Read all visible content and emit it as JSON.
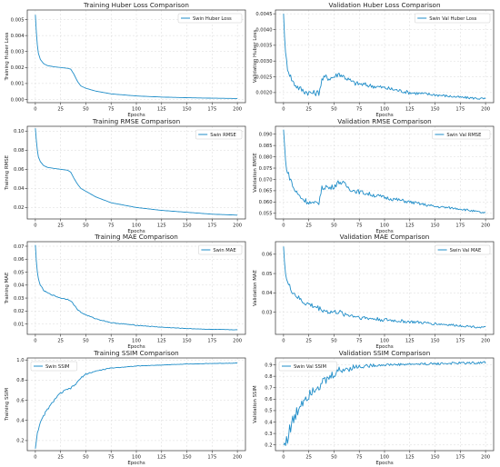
{
  "colors": {
    "series": "#1f8dc8",
    "grid": "#d9d9d9",
    "axis": "#333333"
  },
  "chart_data": [
    {
      "type": "line",
      "title": "Training Huber Loss Comparison",
      "xlabel": "Epochs",
      "ylabel": "Training Huber Loss",
      "xlim": [
        -8,
        208
      ],
      "ylim": [
        -0.0002,
        0.0056
      ],
      "xticks": [
        0,
        25,
        50,
        75,
        100,
        125,
        150,
        175,
        200
      ],
      "yticks": [
        0.0,
        0.001,
        0.002,
        0.003,
        0.004,
        0.005
      ],
      "ytick_labels": [
        "0.000",
        "0.001",
        "0.002",
        "0.003",
        "0.004",
        "0.005"
      ],
      "legend": "top-right",
      "grid": true,
      "noise": 0,
      "series": [
        {
          "name": "Swin Huber Loss",
          "x": [
            0,
            1,
            2,
            3,
            5,
            8,
            12,
            18,
            25,
            32,
            35,
            38,
            42,
            45,
            50,
            60,
            75,
            100,
            125,
            150,
            175,
            200
          ],
          "y": [
            0.0053,
            0.0042,
            0.0034,
            0.0029,
            0.0025,
            0.00225,
            0.00212,
            0.00205,
            0.002,
            0.00195,
            0.0019,
            0.0016,
            0.0011,
            0.00085,
            0.0007,
            0.00052,
            0.00035,
            0.00022,
            0.00015,
            0.00011,
            8e-05,
            6e-05
          ]
        }
      ]
    },
    {
      "type": "line",
      "title": "Validation Huber Loss Comparison",
      "xlabel": "Epochs",
      "ylabel": "Validation Huber Loss",
      "xlim": [
        -8,
        208
      ],
      "ylim": [
        0.00168,
        0.00462
      ],
      "xticks": [
        0,
        25,
        50,
        75,
        100,
        125,
        150,
        175,
        200
      ],
      "yticks": [
        0.002,
        0.0025,
        0.003,
        0.0035,
        0.004,
        0.0045
      ],
      "ytick_labels": [
        "0.0020",
        "0.0025",
        "0.0030",
        "0.0035",
        "0.0040",
        "0.0045"
      ],
      "legend": "top-right",
      "grid": true,
      "noise": 0.00011,
      "series": [
        {
          "name": "Swin Val Huber Loss",
          "x": [
            0,
            2,
            4,
            7,
            10,
            15,
            20,
            25,
            30,
            35,
            38,
            42,
            45,
            50,
            55,
            60,
            65,
            70,
            80,
            90,
            100,
            125,
            150,
            175,
            200
          ],
          "y": [
            0.0045,
            0.0032,
            0.0028,
            0.0025,
            0.0023,
            0.00215,
            0.00205,
            0.002,
            0.00198,
            0.002,
            0.0024,
            0.0025,
            0.00245,
            0.0025,
            0.0026,
            0.0025,
            0.0024,
            0.0023,
            0.00225,
            0.0022,
            0.00215,
            0.002,
            0.00193,
            0.00185,
            0.0018
          ]
        }
      ]
    },
    {
      "type": "line",
      "title": "Training RMSE Comparison",
      "xlabel": "Epochs",
      "ylabel": "Training RMSE",
      "xlim": [
        -8,
        208
      ],
      "ylim": [
        0.008,
        0.105
      ],
      "xticks": [
        0,
        25,
        50,
        75,
        100,
        125,
        150,
        175,
        200
      ],
      "yticks": [
        0.02,
        0.04,
        0.06,
        0.08,
        0.1
      ],
      "ytick_labels": [
        "0.02",
        "0.04",
        "0.06",
        "0.08",
        "0.10"
      ],
      "legend": "top-right",
      "grid": true,
      "noise": 0,
      "series": [
        {
          "name": "Swin RMSE",
          "x": [
            0,
            1,
            2,
            3,
            5,
            8,
            12,
            18,
            25,
            32,
            35,
            38,
            42,
            45,
            50,
            60,
            75,
            100,
            125,
            150,
            175,
            200
          ],
          "y": [
            0.103,
            0.09,
            0.08,
            0.073,
            0.068,
            0.064,
            0.062,
            0.061,
            0.06,
            0.059,
            0.057,
            0.051,
            0.044,
            0.04,
            0.037,
            0.031,
            0.025,
            0.02,
            0.017,
            0.015,
            0.013,
            0.012
          ]
        }
      ]
    },
    {
      "type": "line",
      "title": "Validation RMSE Comparison",
      "xlabel": "Epochs",
      "ylabel": "Validation RMSE",
      "xlim": [
        -8,
        208
      ],
      "ylim": [
        0.0525,
        0.0935
      ],
      "xticks": [
        0,
        25,
        50,
        75,
        100,
        125,
        150,
        175,
        200
      ],
      "yticks": [
        0.055,
        0.06,
        0.065,
        0.07,
        0.075,
        0.08,
        0.085,
        0.09
      ],
      "ytick_labels": [
        "0.055",
        "0.060",
        "0.065",
        "0.070",
        "0.075",
        "0.080",
        "0.085",
        "0.090"
      ],
      "legend": "top-right",
      "grid": true,
      "noise": 0.0014,
      "series": [
        {
          "name": "Swin Val RMSE",
          "x": [
            0,
            2,
            4,
            7,
            10,
            15,
            20,
            25,
            30,
            35,
            38,
            42,
            45,
            50,
            55,
            60,
            65,
            70,
            80,
            90,
            100,
            125,
            150,
            175,
            200
          ],
          "y": [
            0.092,
            0.078,
            0.073,
            0.07,
            0.066,
            0.063,
            0.061,
            0.06,
            0.059,
            0.06,
            0.066,
            0.067,
            0.066,
            0.067,
            0.069,
            0.068,
            0.066,
            0.065,
            0.064,
            0.063,
            0.062,
            0.06,
            0.058,
            0.057,
            0.055
          ]
        }
      ]
    },
    {
      "type": "line",
      "title": "Training MAE Comparison",
      "xlabel": "Epochs",
      "ylabel": "Training MAE",
      "xlim": [
        -8,
        208
      ],
      "ylim": [
        0.002,
        0.0735
      ],
      "xticks": [
        0,
        25,
        50,
        75,
        100,
        125,
        150,
        175,
        200
      ],
      "yticks": [
        0.01,
        0.02,
        0.03,
        0.04,
        0.05,
        0.06,
        0.07
      ],
      "ytick_labels": [
        "0.01",
        "0.02",
        "0.03",
        "0.04",
        "0.05",
        "0.06",
        "0.07"
      ],
      "legend": "top-right",
      "grid": true,
      "noise": 0.0004,
      "series": [
        {
          "name": "Swin MAE",
          "x": [
            0,
            1,
            2,
            3,
            5,
            8,
            12,
            18,
            25,
            32,
            35,
            38,
            42,
            45,
            50,
            60,
            75,
            100,
            125,
            150,
            175,
            200
          ],
          "y": [
            0.071,
            0.058,
            0.05,
            0.045,
            0.04,
            0.036,
            0.034,
            0.032,
            0.03,
            0.029,
            0.028,
            0.025,
            0.021,
            0.019,
            0.017,
            0.014,
            0.011,
            0.009,
            0.0075,
            0.0065,
            0.0058,
            0.0055
          ]
        }
      ]
    },
    {
      "type": "line",
      "title": "Validation MAE Comparison",
      "xlabel": "Epochs",
      "ylabel": "Validation MAE",
      "xlim": [
        -8,
        208
      ],
      "ylim": [
        0.0185,
        0.0665
      ],
      "xticks": [
        0,
        25,
        50,
        75,
        100,
        125,
        150,
        175,
        200
      ],
      "yticks": [
        0.03,
        0.04,
        0.05,
        0.06
      ],
      "ytick_labels": [
        "0.03",
        "0.04",
        "0.05",
        "0.06"
      ],
      "legend": "top-right",
      "grid": true,
      "noise": 0.0016,
      "series": [
        {
          "name": "Swin Val MAE",
          "x": [
            0,
            2,
            4,
            7,
            10,
            15,
            20,
            25,
            30,
            35,
            40,
            45,
            50,
            55,
            60,
            70,
            80,
            100,
            125,
            150,
            175,
            200
          ],
          "y": [
            0.064,
            0.05,
            0.045,
            0.042,
            0.04,
            0.037,
            0.035,
            0.034,
            0.033,
            0.032,
            0.031,
            0.03,
            0.03,
            0.03,
            0.029,
            0.028,
            0.027,
            0.026,
            0.025,
            0.024,
            0.023,
            0.022
          ]
        }
      ]
    },
    {
      "type": "line",
      "title": "Training SSIM Comparison",
      "xlabel": "Epochs",
      "ylabel": "Training SSIM",
      "xlim": [
        -8,
        208
      ],
      "ylim": [
        0.1,
        1.02
      ],
      "xticks": [
        0,
        25,
        50,
        75,
        100,
        125,
        150,
        175,
        200
      ],
      "yticks": [
        0.2,
        0.4,
        0.6,
        0.8,
        1.0
      ],
      "ytick_labels": [
        "0.2",
        "0.4",
        "0.6",
        "0.8",
        "1.0"
      ],
      "legend": "top-left",
      "grid": true,
      "noise": 0.012,
      "series": [
        {
          "name": "Swin SSIM",
          "x": [
            0,
            1,
            2,
            4,
            7,
            10,
            15,
            20,
            25,
            30,
            35,
            40,
            45,
            50,
            60,
            75,
            100,
            125,
            150,
            175,
            200
          ],
          "y": [
            0.12,
            0.2,
            0.28,
            0.35,
            0.42,
            0.48,
            0.55,
            0.62,
            0.67,
            0.7,
            0.72,
            0.76,
            0.82,
            0.86,
            0.89,
            0.92,
            0.94,
            0.95,
            0.96,
            0.965,
            0.97
          ]
        }
      ]
    },
    {
      "type": "line",
      "title": "Validation SSIM Comparison",
      "xlabel": "Epochs",
      "ylabel": "Validation SSIM",
      "xlim": [
        -8,
        208
      ],
      "ylim": [
        0.15,
        0.96
      ],
      "xticks": [
        0,
        25,
        50,
        75,
        100,
        125,
        150,
        175,
        200
      ],
      "yticks": [
        0.2,
        0.3,
        0.4,
        0.5,
        0.6,
        0.7,
        0.8,
        0.9
      ],
      "ytick_labels": [
        "0.2",
        "0.3",
        "0.4",
        "0.5",
        "0.6",
        "0.7",
        "0.8",
        "0.9"
      ],
      "legend": "top-left",
      "grid": true,
      "noise": 0.07,
      "series": [
        {
          "name": "Swin Val SSIM",
          "x": [
            0,
            2,
            5,
            8,
            12,
            16,
            20,
            25,
            30,
            35,
            40,
            45,
            50,
            55,
            60,
            70,
            80,
            100,
            125,
            150,
            175,
            200
          ],
          "y": [
            0.2,
            0.22,
            0.3,
            0.38,
            0.45,
            0.55,
            0.6,
            0.65,
            0.7,
            0.72,
            0.75,
            0.78,
            0.82,
            0.85,
            0.86,
            0.88,
            0.89,
            0.9,
            0.905,
            0.91,
            0.915,
            0.92
          ]
        }
      ]
    }
  ]
}
